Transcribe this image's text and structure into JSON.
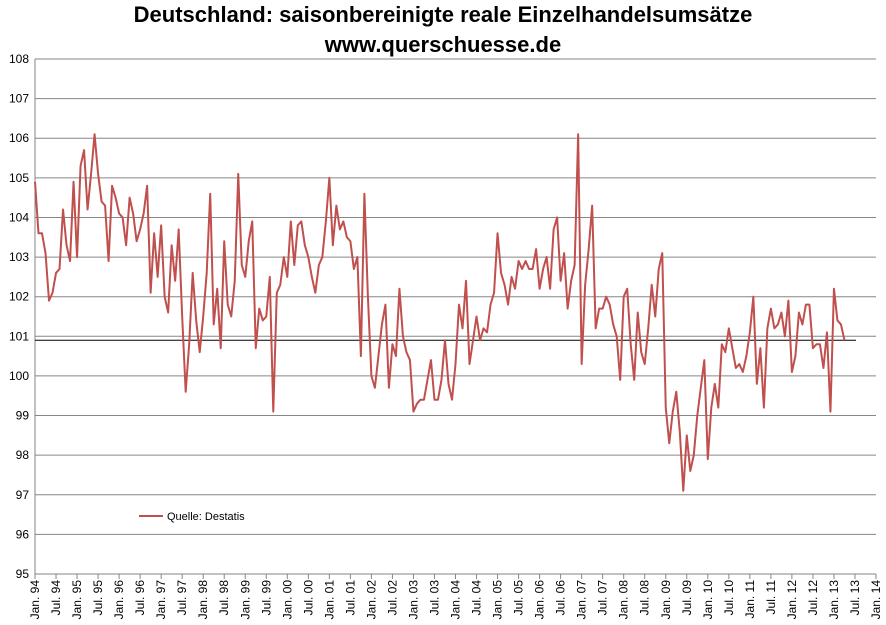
{
  "chart_data": {
    "type": "line",
    "title": "Deutschland: saisonbereinigte reale Einzelhandelsumsätze",
    "subtitle": "www.querschuesse.de",
    "ylim": [
      95,
      108
    ],
    "yticks": [
      95,
      96,
      97,
      98,
      99,
      100,
      101,
      102,
      103,
      104,
      105,
      106,
      107,
      108
    ],
    "xticks": [
      "Jan. 94",
      "Jul. 94",
      "Jan. 95",
      "Jul. 95",
      "Jan. 96",
      "Jul. 96",
      "Jan. 97",
      "Jul. 97",
      "Jan. 98",
      "Jul. 98",
      "Jan. 99",
      "Jul. 99",
      "Jan. 00",
      "Jul. 00",
      "Jan. 01",
      "Jul. 01",
      "Jan. 02",
      "Jul. 02",
      "Jan. 03",
      "Jul. 03",
      "Jan. 04",
      "Jul. 04",
      "Jan. 05",
      "Jul. 05",
      "Jan. 06",
      "Jul. 06",
      "Jan. 07",
      "Jul. 07",
      "Jan. 08",
      "Jul. 08",
      "Jan. 09",
      "Jul. 09",
      "Jan. 10",
      "Jul. 10",
      "Jan. 11",
      "Jul. 11",
      "Jan. 12",
      "Jul. 12",
      "Jan. 13",
      "Jul. 13",
      "Jan. 14"
    ],
    "grid": "horizontal",
    "reference_line": 100.9,
    "legend_position": "bottom-left",
    "series": [
      {
        "name": "Quelle: Destatis",
        "color": "#c0504d",
        "start": "1994-01",
        "values": [
          104.9,
          103.6,
          103.6,
          103.1,
          101.9,
          102.1,
          102.6,
          102.7,
          104.2,
          103.3,
          102.9,
          104.9,
          103.0,
          105.3,
          105.7,
          104.2,
          105.1,
          106.1,
          105.1,
          104.4,
          104.3,
          102.9,
          104.8,
          104.5,
          104.1,
          104.0,
          103.3,
          104.5,
          104.1,
          103.4,
          103.7,
          104.1,
          104.8,
          102.1,
          103.6,
          102.5,
          103.8,
          102.0,
          101.6,
          103.3,
          102.4,
          103.7,
          101.5,
          99.6,
          100.8,
          102.6,
          101.4,
          100.6,
          101.5,
          102.6,
          104.6,
          101.3,
          102.2,
          100.7,
          103.4,
          101.8,
          101.5,
          102.4,
          105.1,
          102.8,
          102.5,
          103.4,
          103.9,
          100.7,
          101.7,
          101.4,
          101.5,
          102.5,
          99.1,
          102.1,
          102.3,
          103.0,
          102.5,
          103.9,
          102.8,
          103.8,
          103.9,
          103.3,
          103.0,
          102.5,
          102.1,
          102.8,
          103.0,
          103.9,
          105.0,
          103.3,
          104.3,
          103.7,
          103.9,
          103.5,
          103.4,
          102.7,
          103.0,
          100.5,
          104.6,
          102.0,
          100.0,
          99.7,
          100.5,
          101.3,
          101.8,
          99.7,
          100.8,
          100.5,
          102.2,
          101.0,
          100.6,
          100.4,
          99.1,
          99.3,
          99.4,
          99.4,
          99.9,
          100.4,
          99.4,
          99.4,
          99.9,
          100.9,
          99.8,
          99.4,
          100.3,
          101.8,
          101.2,
          102.4,
          100.3,
          100.9,
          101.5,
          100.9,
          101.2,
          101.1,
          101.8,
          102.1,
          103.6,
          102.6,
          102.3,
          101.8,
          102.5,
          102.2,
          102.9,
          102.7,
          102.9,
          102.7,
          102.7,
          103.2,
          102.2,
          102.7,
          103.0,
          102.2,
          103.7,
          104.0,
          102.4,
          103.1,
          101.7,
          102.4,
          102.8,
          106.1,
          100.3,
          102.3,
          103.2,
          104.3,
          101.2,
          101.7,
          101.7,
          102.0,
          101.8,
          101.3,
          101.0,
          99.9,
          102.0,
          102.2,
          100.8,
          99.9,
          101.6,
          100.6,
          100.3,
          101.2,
          102.3,
          101.5,
          102.7,
          103.1,
          99.2,
          98.3,
          99.1,
          99.6,
          98.6,
          97.1,
          98.5,
          97.6,
          98.0,
          99.0,
          99.7,
          100.4,
          97.9,
          99.2,
          99.8,
          99.2,
          100.8,
          100.6,
          101.2,
          100.7,
          100.2,
          100.3,
          100.1,
          100.5,
          101.1,
          102.0,
          99.8,
          100.7,
          99.2,
          101.2,
          101.7,
          101.2,
          101.3,
          101.6,
          101.0,
          101.9,
          100.1,
          100.5,
          101.6,
          101.3,
          101.8,
          101.8,
          100.7,
          100.8,
          100.8,
          100.2,
          101.1,
          99.1,
          102.2,
          101.4,
          101.3,
          100.9
        ]
      }
    ]
  }
}
